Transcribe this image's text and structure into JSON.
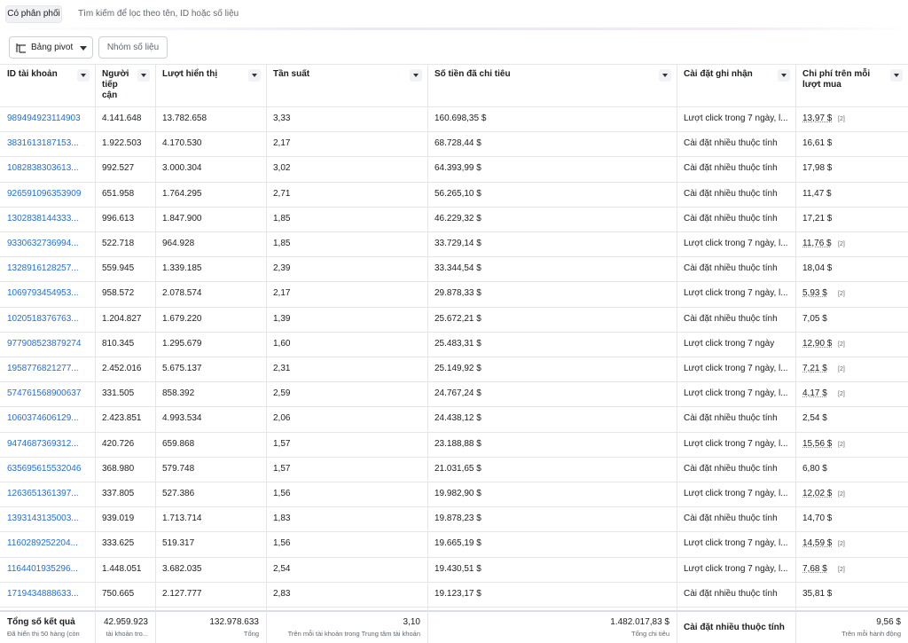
{
  "toolbar": {
    "filter_chip": "Có phân phối",
    "search_placeholder": "Tìm kiếm để lọc theo tên, ID hoặc số liệu",
    "pivot_button": "Bảng pivot",
    "metric_group_button": "Nhóm số liệu"
  },
  "table": {
    "headers": [
      "ID tài khoản",
      "Người tiếp cận",
      "Lượt hiển thị",
      "Tần suất",
      "Số tiền đã chi tiêu",
      "Cài đặt ghi nhận",
      "Chi phí trên mỗi lượt mua"
    ],
    "rows": [
      {
        "cells": [
          "989494923114903",
          "4.141.648",
          "13.782.658",
          "3,33",
          "160.698,35 $",
          "Lượt click trong 7 ngày, l...",
          "13,97 $"
        ],
        "note": "[2]"
      },
      {
        "cells": [
          "3831613187153...",
          "1.922.503",
          "4.170.530",
          "2,17",
          "68.728,44 $",
          "Cài đặt nhiều thuộc tính",
          "16,61 $"
        ]
      },
      {
        "cells": [
          "1082838303613...",
          "992.527",
          "3.000.304",
          "3,02",
          "64.393,99 $",
          "Cài đặt nhiều thuộc tính",
          "17,98 $"
        ]
      },
      {
        "cells": [
          "926591096353909",
          "651.958",
          "1.764.295",
          "2,71",
          "56.265,10 $",
          "Cài đặt nhiều thuộc tính",
          "11,47 $"
        ]
      },
      {
        "cells": [
          "1302838144333...",
          "996.613",
          "1.847.900",
          "1,85",
          "46.229,32 $",
          "Cài đặt nhiều thuộc tính",
          "17,21 $"
        ]
      },
      {
        "cells": [
          "9330632736994...",
          "522.718",
          "964.928",
          "1,85",
          "33.729,14 $",
          "Lượt click trong 7 ngày, l...",
          "11,76 $"
        ],
        "note": "[2]"
      },
      {
        "cells": [
          "1328916128257...",
          "559.945",
          "1.339.185",
          "2,39",
          "33.344,54 $",
          "Cài đặt nhiều thuộc tính",
          "18,04 $"
        ]
      },
      {
        "cells": [
          "1069793454953...",
          "958.572",
          "2.078.574",
          "2,17",
          "29.878,33 $",
          "Lượt click trong 7 ngày, l...",
          "5,93 $"
        ],
        "note": "[2]"
      },
      {
        "cells": [
          "1020518376763...",
          "1.204.827",
          "1.679.220",
          "1,39",
          "25.672,21 $",
          "Cài đặt nhiều thuộc tính",
          "7,05 $"
        ]
      },
      {
        "cells": [
          "977908523879274",
          "810.345",
          "1.295.679",
          "1,60",
          "25.483,31 $",
          "Lượt click trong 7 ngày",
          "12,90 $"
        ],
        "note": "[2]"
      },
      {
        "cells": [
          "1958776821277...",
          "2.452.016",
          "5.675.137",
          "2,31",
          "25.149,92 $",
          "Lượt click trong 7 ngày, l...",
          "7,21 $"
        ],
        "note": "[2]"
      },
      {
        "cells": [
          "574761568900637",
          "331.505",
          "858.392",
          "2,59",
          "24.767,24 $",
          "Lượt click trong 7 ngày, l...",
          "4,17 $"
        ],
        "note": "[2]"
      },
      {
        "cells": [
          "1060374606129...",
          "2.423.851",
          "4.993.534",
          "2,06",
          "24.438,12 $",
          "Cài đặt nhiều thuộc tính",
          "2,54 $"
        ]
      },
      {
        "cells": [
          "9474687369312...",
          "420.726",
          "659.868",
          "1,57",
          "23.188,88 $",
          "Lượt click trong 7 ngày, l...",
          "15,56 $"
        ],
        "note": "[2]"
      },
      {
        "cells": [
          "635695615532046",
          "368.980",
          "579.748",
          "1,57",
          "21.031,65 $",
          "Cài đặt nhiều thuộc tính",
          "6,80 $"
        ]
      },
      {
        "cells": [
          "1263651361397...",
          "337.805",
          "527.386",
          "1,56",
          "19.982,90 $",
          "Lượt click trong 7 ngày, l...",
          "12,02 $"
        ],
        "note": "[2]"
      },
      {
        "cells": [
          "1393143135003...",
          "939.019",
          "1.713.714",
          "1,83",
          "19.878,23 $",
          "Cài đặt nhiều thuộc tính",
          "14,70 $"
        ]
      },
      {
        "cells": [
          "1160289252204...",
          "333.625",
          "519.317",
          "1,56",
          "19.665,19 $",
          "Lượt click trong 7 ngày, l...",
          "14,59 $"
        ],
        "note": "[2]"
      },
      {
        "cells": [
          "1164401935296...",
          "1.448.051",
          "3.682.035",
          "2,54",
          "19.430,51 $",
          "Lượt click trong 7 ngày, l...",
          "7,68 $"
        ],
        "note": "[2]"
      },
      {
        "cells": [
          "1719434888633...",
          "750.665",
          "2.127.777",
          "2,83",
          "19.123,17 $",
          "Cài đặt nhiều thuộc tính",
          "35,81 $"
        ]
      }
    ],
    "footer": [
      {
        "main": "Tổng số kết quả",
        "sub": "Đã hiển thị 50 hàng (còn"
      },
      {
        "main": "42.959.923",
        "sub": "tài khoản tro..."
      },
      {
        "main": "132.978.633",
        "sub": "Tổng"
      },
      {
        "main": "3,10",
        "sub": "Trên mỗi tài khoản trong Trung tâm tài khoản"
      },
      {
        "main": "1.482.017,83 $",
        "sub": "Tổng chi tiêu"
      },
      {
        "main": "Cài đặt nhiều thuộc tính"
      },
      {
        "main": "9,56 $",
        "sub": "Trên mỗi hành động"
      }
    ]
  }
}
